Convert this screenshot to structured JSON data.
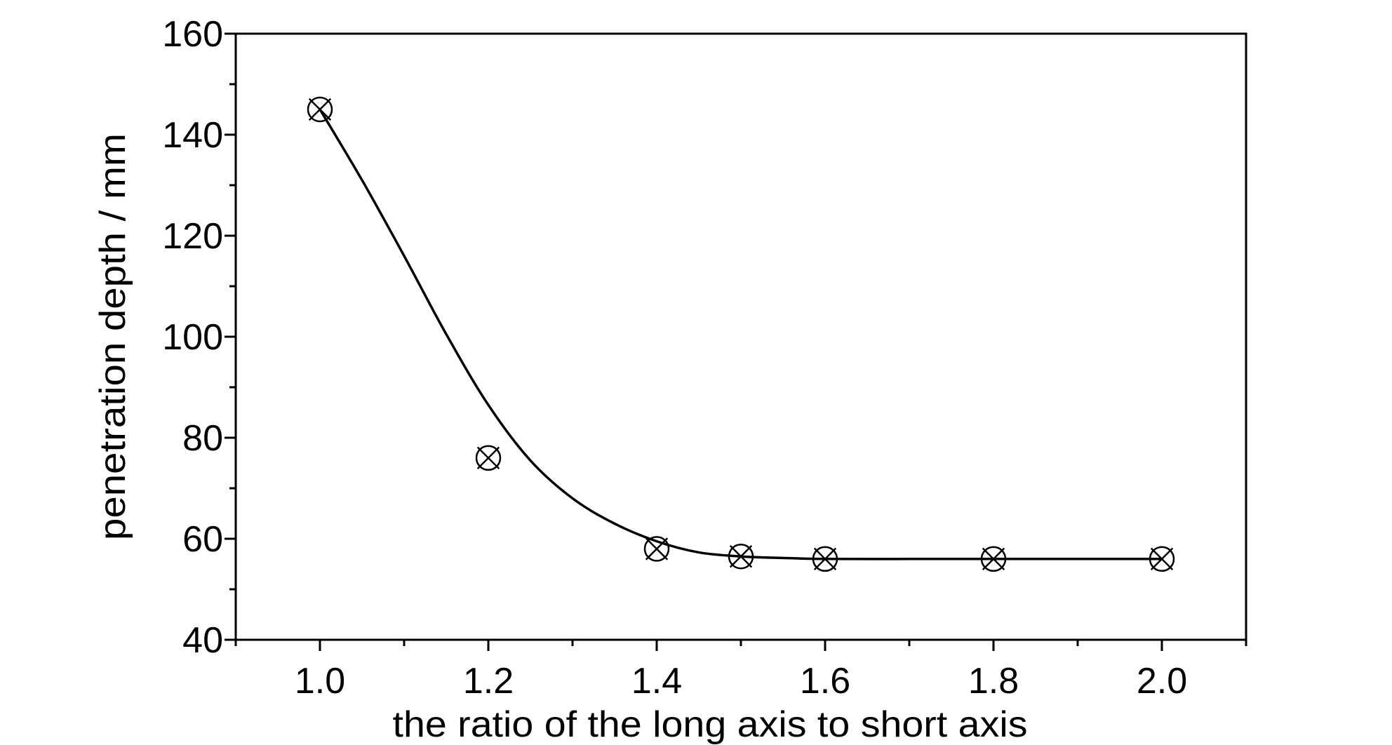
{
  "chart_data": {
    "type": "scatter",
    "title": "",
    "xlabel": "the ratio of the long axis to short axis",
    "ylabel": "penetration depth / mm",
    "xlim": [
      0.9,
      2.1
    ],
    "ylim": [
      40,
      160
    ],
    "xticks": [
      1.0,
      1.2,
      1.4,
      1.6,
      1.8,
      2.0
    ],
    "xtick_labels": [
      "1.0",
      "1.2",
      "1.4",
      "1.6",
      "1.8",
      "2.0"
    ],
    "yticks": [
      40,
      60,
      80,
      100,
      120,
      140,
      160
    ],
    "ytick_labels": [
      "40",
      "60",
      "80",
      "100",
      "120",
      "140",
      "160"
    ],
    "grid": false,
    "legend": "none",
    "series": [
      {
        "marker": "circle-x",
        "x": [
          1.0,
          1.2,
          1.4,
          1.5,
          1.6,
          1.8,
          2.0
        ],
        "y": [
          145,
          76,
          58,
          56.5,
          56,
          56,
          56
        ]
      },
      {
        "line": "smooth-fit",
        "x": [
          1.0,
          1.05,
          1.1,
          1.15,
          1.2,
          1.25,
          1.3,
          1.35,
          1.4,
          1.45,
          1.5,
          1.55,
          1.6,
          1.7,
          1.8,
          1.9,
          2.0
        ],
        "y": [
          145,
          131,
          116,
          100.5,
          86.5,
          75.5,
          68,
          63,
          59.5,
          57.3,
          56.5,
          56.2,
          56,
          56,
          56,
          56,
          56
        ]
      }
    ],
    "colors": {
      "ink": "#000000",
      "background": "#ffffff"
    }
  }
}
